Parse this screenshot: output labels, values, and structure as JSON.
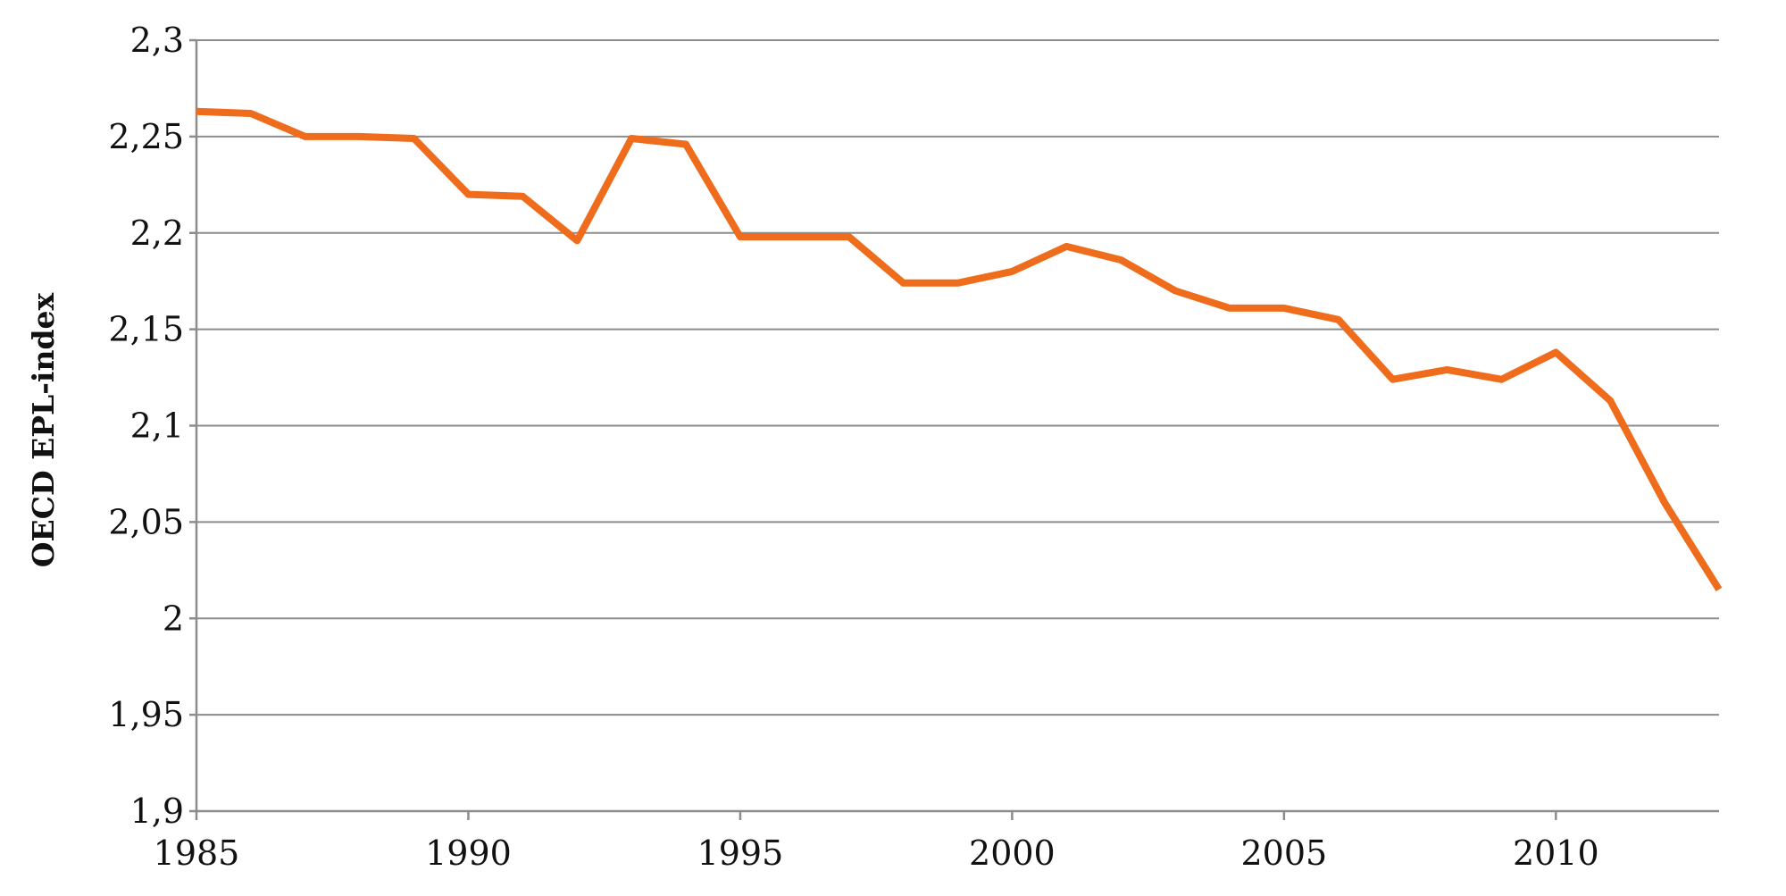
{
  "chart_data": {
    "type": "line",
    "title": "",
    "xlabel": "",
    "ylabel": "OECD EPL-index",
    "x_tick_labels": [
      "1985",
      "1990",
      "1995",
      "2000",
      "2005",
      "2010"
    ],
    "y_tick_labels": [
      "1,9",
      "1,95",
      "2",
      "2,05",
      "2,1",
      "2,15",
      "2,2",
      "2,25",
      "2,3"
    ],
    "xlim": [
      1985,
      2013
    ],
    "ylim": [
      1.9,
      2.3
    ],
    "grid": true,
    "legend": "none",
    "series": [
      {
        "color": "#EE6C1B",
        "x": [
          1985,
          1986,
          1987,
          1988,
          1989,
          1990,
          1991,
          1992,
          1993,
          1994,
          1995,
          1996,
          1997,
          1998,
          1999,
          2000,
          2001,
          2002,
          2003,
          2004,
          2005,
          2006,
          2007,
          2008,
          2009,
          2010,
          2011,
          2012,
          2013
        ],
        "values": [
          2.263,
          2.262,
          2.25,
          2.25,
          2.249,
          2.22,
          2.219,
          2.196,
          2.249,
          2.246,
          2.198,
          2.198,
          2.198,
          2.174,
          2.174,
          2.18,
          2.193,
          2.186,
          2.17,
          2.161,
          2.161,
          2.155,
          2.124,
          2.129,
          2.124,
          2.138,
          2.113,
          2.06,
          2.015
        ]
      }
    ]
  }
}
